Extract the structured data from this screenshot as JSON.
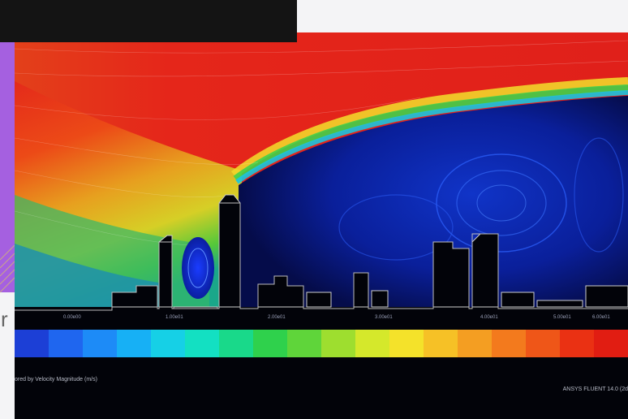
{
  "left_edge": {
    "letter": "r"
  },
  "legend": {
    "tick_labels": [
      "0.00e00",
      "1.00e01",
      "2.00e01",
      "3.00e01",
      "4.00e01",
      "5.00e01",
      "6.00e01"
    ],
    "colors": [
      "#1c3fd6",
      "#1f66ef",
      "#1d8bf7",
      "#17b0f5",
      "#16d0e6",
      "#13e0c2",
      "#19d98a",
      "#2fd14c",
      "#5fd53a",
      "#9ede2f",
      "#d5e82b",
      "#f4e22a",
      "#f6c126",
      "#f49e22",
      "#f37a1d",
      "#ef5618",
      "#ea3113",
      "#e11d12"
    ]
  },
  "captions": {
    "left": "ored by Velocity Magnitude (m/s)",
    "right": "ANSYS FLUENT 14.0 (2d"
  }
}
